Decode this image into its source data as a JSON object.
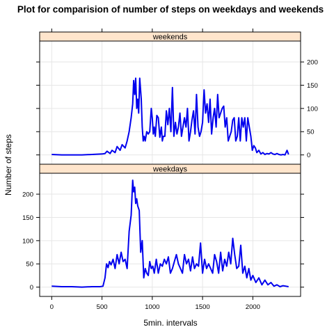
{
  "chart_data": {
    "type": "line",
    "title": "Plot for comparision of number of steps on weekdays and weekends",
    "xlabel": "5min. intervals",
    "ylabel": "Number of steps",
    "xlim": [
      -120,
      2475
    ],
    "ylim": [
      -20,
      245
    ],
    "xticks": [
      0,
      500,
      1000,
      1500,
      2000
    ],
    "yticks": [
      0,
      50,
      100,
      150,
      200
    ],
    "grid": true,
    "line_color": "#0000ee",
    "strip_color": "#ffe5cc",
    "panels": [
      {
        "name": "weekends",
        "x": [
          0,
          100,
          200,
          300,
          400,
          500,
          530,
          550,
          580,
          600,
          630,
          650,
          680,
          700,
          730,
          750,
          770,
          790,
          805,
          815,
          825,
          835,
          845,
          855,
          865,
          875,
          890,
          900,
          910,
          920,
          930,
          945,
          960,
          975,
          990,
          1000,
          1010,
          1020,
          1030,
          1045,
          1060,
          1075,
          1090,
          1100,
          1110,
          1125,
          1140,
          1155,
          1170,
          1185,
          1200,
          1215,
          1230,
          1245,
          1260,
          1275,
          1290,
          1305,
          1320,
          1335,
          1350,
          1365,
          1380,
          1395,
          1410,
          1425,
          1440,
          1455,
          1470,
          1485,
          1500,
          1515,
          1530,
          1545,
          1560,
          1575,
          1590,
          1605,
          1620,
          1635,
          1650,
          1665,
          1680,
          1695,
          1710,
          1725,
          1740,
          1755,
          1770,
          1785,
          1800,
          1815,
          1830,
          1845,
          1860,
          1875,
          1890,
          1905,
          1920,
          1935,
          1950,
          1965,
          1980,
          1995,
          2010,
          2025,
          2040,
          2060,
          2080,
          2100,
          2120,
          2140,
          2160,
          2180,
          2200,
          2220,
          2240,
          2260,
          2280,
          2300,
          2320,
          2340,
          2355
        ],
        "y": [
          1,
          0,
          0,
          0,
          1,
          2,
          3,
          8,
          3,
          10,
          5,
          18,
          10,
          22,
          15,
          30,
          50,
          80,
          110,
          160,
          130,
          165,
          100,
          120,
          90,
          165,
          120,
          60,
          30,
          40,
          30,
          50,
          45,
          50,
          100,
          80,
          45,
          60,
          40,
          85,
          80,
          38,
          60,
          30,
          40,
          40,
          95,
          65,
          100,
          50,
          145,
          40,
          70,
          45,
          60,
          90,
          40,
          60,
          80,
          60,
          100,
          30,
          50,
          75,
          95,
          45,
          130,
          60,
          40,
          50,
          70,
          140,
          90,
          110,
          70,
          120,
          45,
          80,
          100,
          60,
          130,
          80,
          90,
          100,
          105,
          60,
          80,
          30,
          40,
          50,
          75,
          80,
          30,
          40,
          80,
          30,
          80,
          60,
          80,
          30,
          80,
          60,
          40,
          10,
          20,
          15,
          5,
          10,
          2,
          5,
          1,
          3,
          2,
          5,
          2,
          1,
          3,
          1,
          0,
          1,
          0,
          10,
          1
        ]
      },
      {
        "name": "weekdays",
        "x": [
          0,
          100,
          200,
          300,
          400,
          480,
          510,
          530,
          545,
          560,
          575,
          590,
          610,
          630,
          650,
          670,
          690,
          710,
          730,
          750,
          770,
          790,
          805,
          815,
          825,
          835,
          845,
          855,
          870,
          885,
          900,
          915,
          930,
          945,
          960,
          975,
          990,
          1005,
          1020,
          1040,
          1060,
          1080,
          1100,
          1120,
          1140,
          1160,
          1180,
          1200,
          1220,
          1240,
          1260,
          1280,
          1300,
          1320,
          1340,
          1360,
          1380,
          1400,
          1420,
          1440,
          1460,
          1480,
          1500,
          1520,
          1540,
          1560,
          1580,
          1600,
          1620,
          1640,
          1660,
          1680,
          1700,
          1720,
          1740,
          1760,
          1780,
          1800,
          1820,
          1840,
          1860,
          1880,
          1900,
          1920,
          1940,
          1960,
          1980,
          2000,
          2030,
          2060,
          2090,
          2120,
          2150,
          2180,
          2210,
          2240,
          2270,
          2300,
          2330,
          2355
        ],
        "y": [
          2,
          1,
          1,
          0,
          1,
          1,
          2,
          20,
          50,
          42,
          55,
          48,
          60,
          40,
          70,
          50,
          75,
          55,
          60,
          40,
          120,
          155,
          230,
          205,
          215,
          180,
          190,
          175,
          165,
          75,
          100,
          20,
          40,
          30,
          25,
          55,
          40,
          45,
          30,
          60,
          30,
          50,
          45,
          60,
          50,
          65,
          30,
          40,
          55,
          70,
          50,
          40,
          30,
          70,
          50,
          60,
          35,
          65,
          40,
          50,
          45,
          95,
          30,
          60,
          40,
          50,
          40,
          30,
          70,
          55,
          30,
          75,
          35,
          60,
          45,
          75,
          50,
          105,
          70,
          40,
          45,
          90,
          30,
          45,
          20,
          40,
          15,
          25,
          10,
          20,
          5,
          15,
          5,
          10,
          2,
          5,
          1,
          3,
          2,
          1
        ]
      }
    ]
  }
}
